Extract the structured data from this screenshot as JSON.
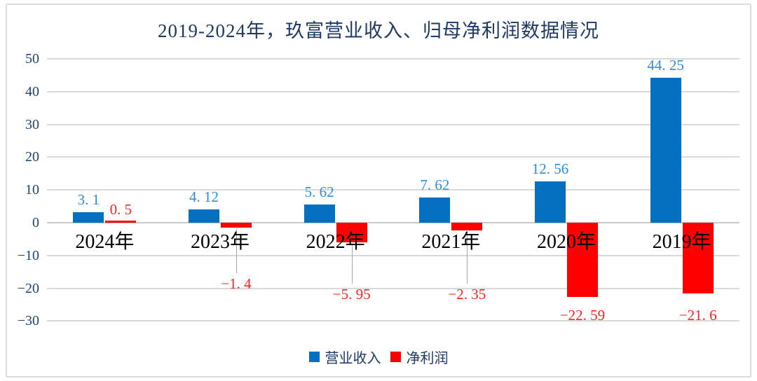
{
  "chart_data": {
    "type": "bar",
    "title": "2019-2024年，玖富营业收入、归母净利润数据情况",
    "categories": [
      "2024年",
      "2023年",
      "2022年",
      "2021年",
      "2020年",
      "2019年"
    ],
    "series": [
      {
        "name": "营业收入",
        "color": "#0670C0",
        "label_color": "#2F8BD6",
        "values": [
          3.1,
          4.12,
          5.62,
          7.62,
          12.56,
          44.25
        ],
        "labels": [
          "3. 1",
          "4. 12",
          "5. 62",
          "7. 62",
          "12. 56",
          "44. 25"
        ]
      },
      {
        "name": "净利润",
        "color": "#FF0000",
        "label_color": "#FF2222",
        "values": [
          0.5,
          -1.4,
          -5.95,
          -2.35,
          -22.59,
          -21.6
        ],
        "labels": [
          "0. 5",
          "−1. 4",
          "−5. 95",
          "−2. 35",
          "−22. 59",
          "−21. 6"
        ]
      }
    ],
    "y_axis": {
      "min": -30,
      "max": 50,
      "step": 10,
      "tick_labels": [
        "50",
        "40",
        "30",
        "20",
        "10",
        "0",
        "−10",
        "−20",
        "−30"
      ]
    },
    "grid": true,
    "legend_position": "bottom"
  },
  "legend": {
    "items": [
      {
        "label": "营业收入",
        "color": "#0670C0"
      },
      {
        "label": "净利润",
        "color": "#FF0000"
      }
    ]
  },
  "colors": {
    "title_text": "#1F3864",
    "axis_text": "#1F4172",
    "category_text": "#000000",
    "gridline": "#D9D9D9",
    "zero_line": "#C9C9C9",
    "leader_line": "#A6A6A6",
    "border": "#DCDCDC",
    "background": "#FFFFFF"
  }
}
